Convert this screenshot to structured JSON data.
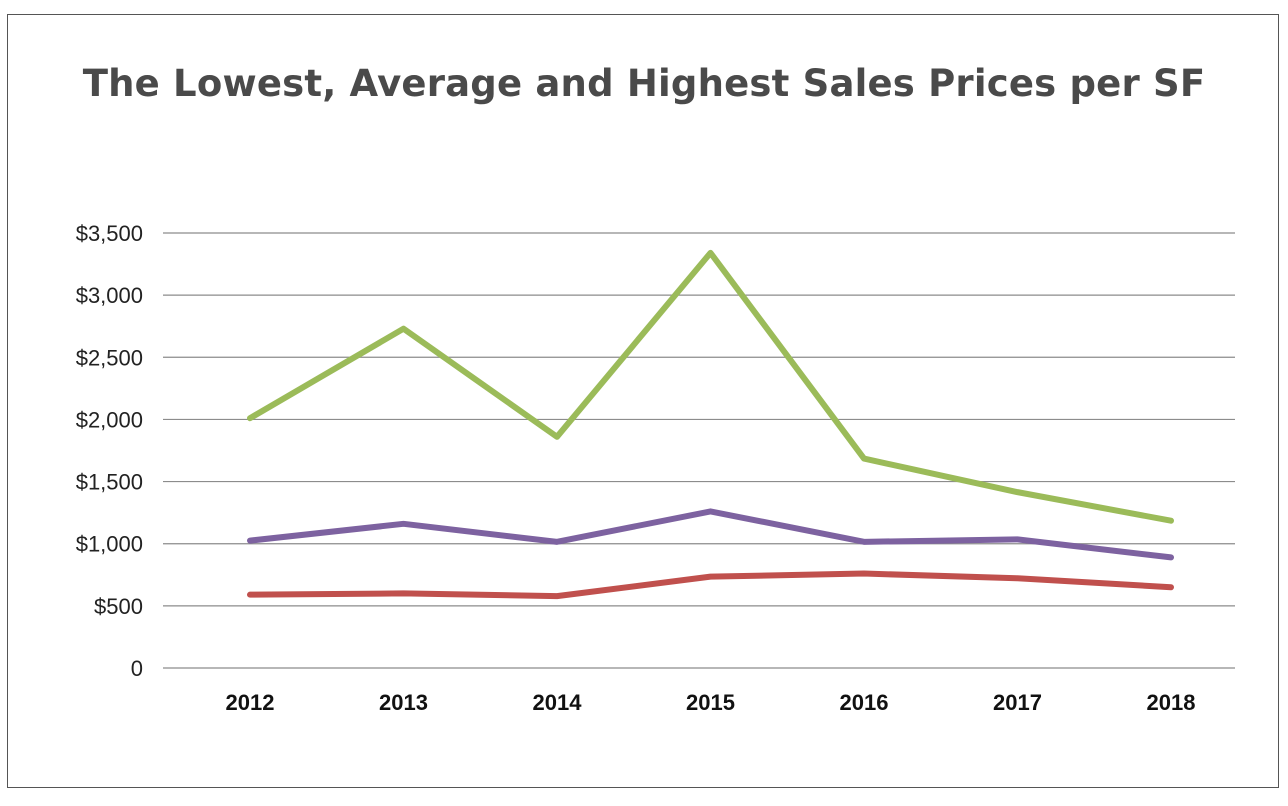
{
  "chart_data": {
    "type": "line",
    "title": "The Lowest, Average and Highest Sales Prices per SF",
    "xlabel": "",
    "ylabel": "",
    "categories": [
      "2012",
      "2013",
      "2014",
      "2015",
      "2016",
      "2017",
      "2018"
    ],
    "ylim": [
      0,
      3500
    ],
    "yticks": [
      0,
      500,
      1000,
      1500,
      2000,
      2500,
      3000,
      3500
    ],
    "ytick_labels": [
      "0",
      "$500",
      "$1,000",
      "$1,500",
      "$2,000",
      "$2,500",
      "$3,000",
      "$3,500"
    ],
    "grid": "horizontal",
    "legend": "none",
    "series": [
      {
        "color": "#9bbb59",
        "values": [
          2010,
          2730,
          1860,
          3340,
          1685,
          1415,
          1185
        ]
      },
      {
        "color": "#7d62a0",
        "values": [
          1025,
          1160,
          1015,
          1260,
          1015,
          1035,
          890
        ]
      },
      {
        "color": "#c0504d",
        "values": [
          590,
          600,
          578,
          735,
          760,
          722,
          650
        ]
      }
    ]
  }
}
